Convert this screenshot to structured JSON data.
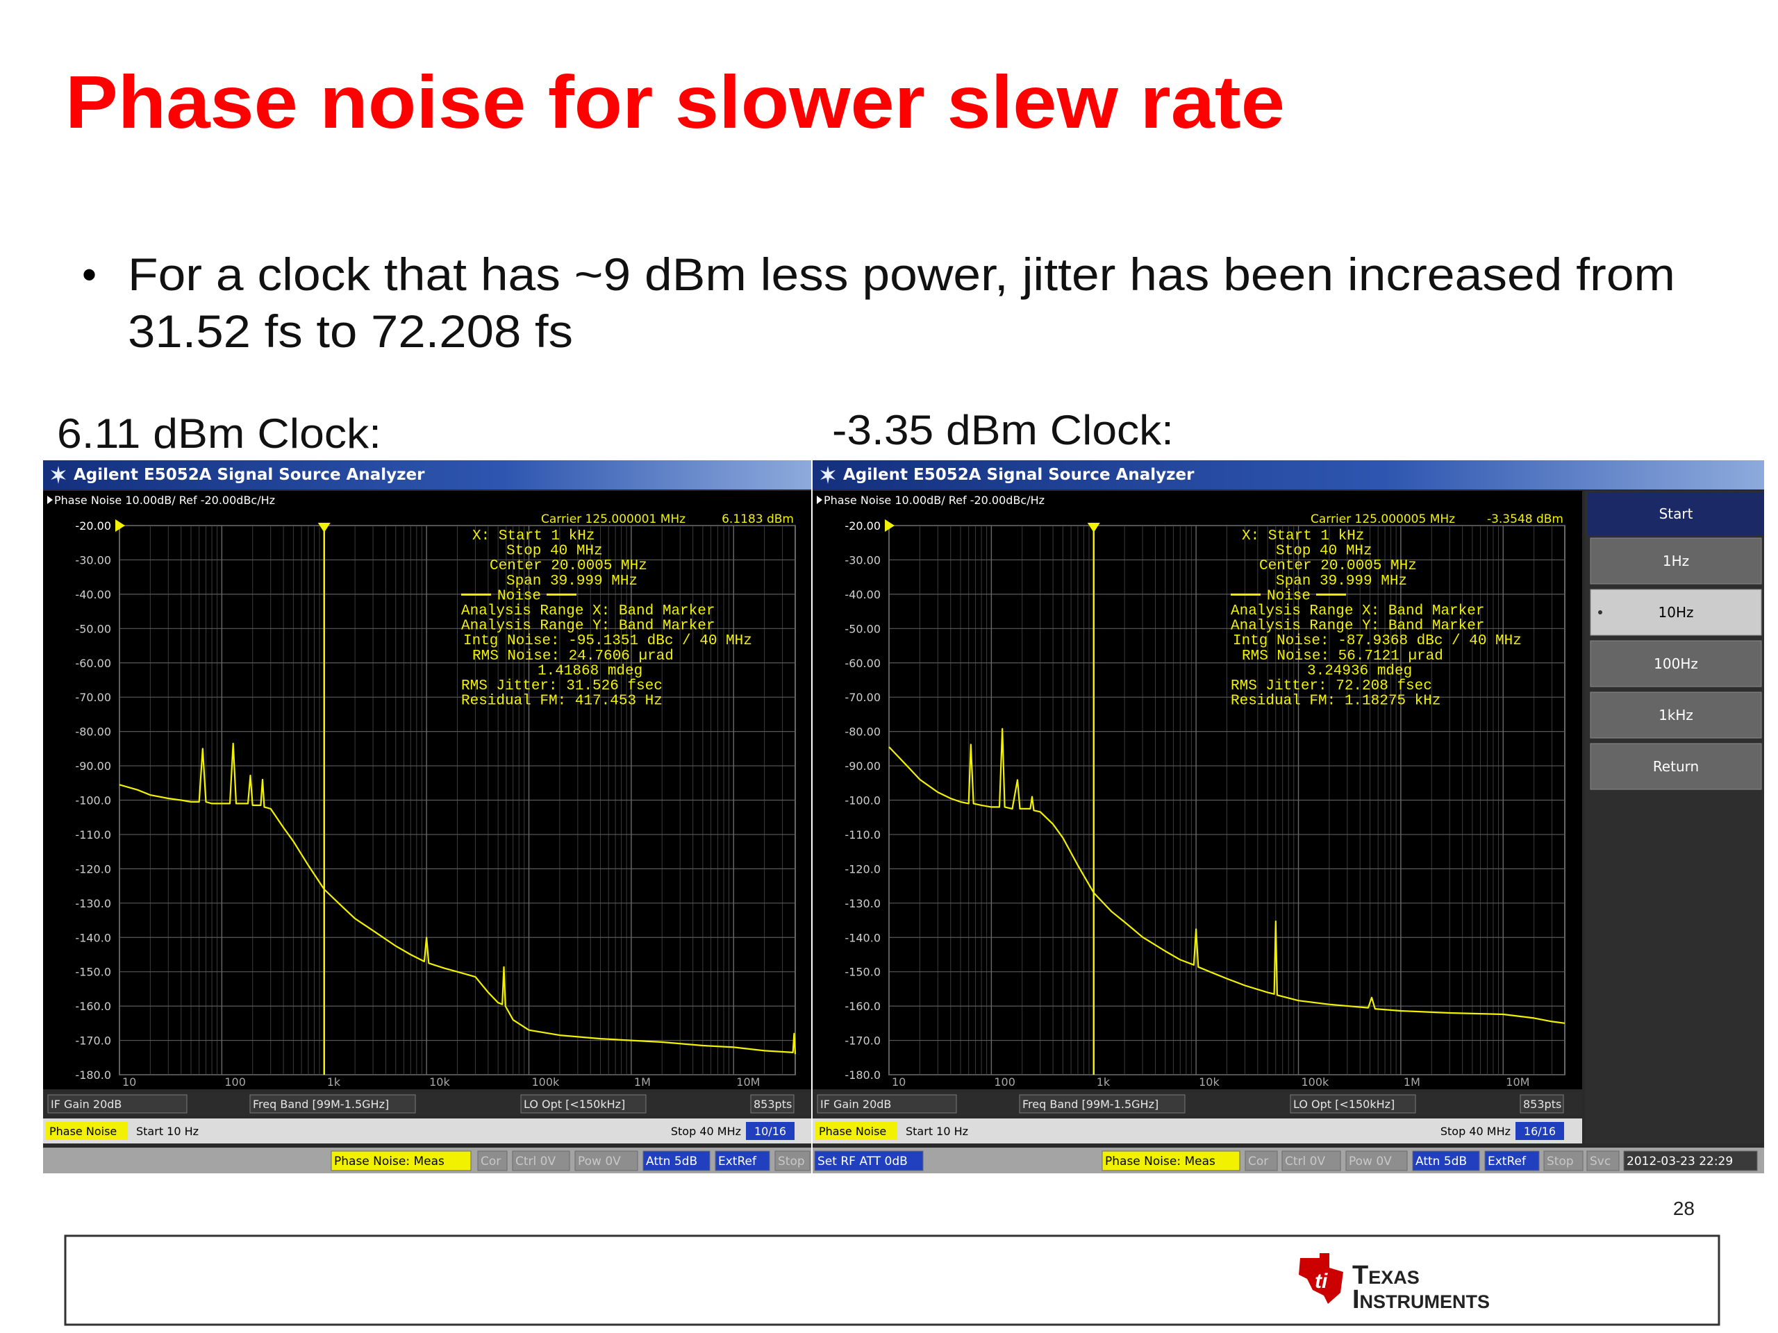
{
  "title": "Phase noise for slower slew rate",
  "bullet_lines": [
    "For a clock that has ~9 dBm less power, jitter has been increased from",
    "31.52 fs to 72.208 fs"
  ],
  "page_number": "28",
  "logo_lines": [
    "Texas",
    "Instruments"
  ],
  "panels": [
    {
      "label": "6.11 dBm Clock:",
      "window_title": "Agilent E5052A Signal Source Analyzer",
      "header": "Phase Noise 10.00dB/ Ref -20.00dBc/Hz",
      "carrier": "Carrier 125.000001 MHz",
      "carrier_power": "6.1183 dBm",
      "marker_lines": [
        "X: Start 1 kHz",
        "Stop 40 MHz",
        "Center 20.0005 MHz",
        "Span 39.999 MHz",
        "Noise",
        "Analysis Range X: Band Marker",
        "Analysis Range Y: Band Marker",
        "Intg Noise: -95.1351 dBc / 40 MHz",
        "RMS Noise: 24.7606 µrad",
        "1.41868 mdeg",
        "RMS Jitter: 31.526 fsec",
        "Residual FM: 417.453 Hz"
      ],
      "chart": {
        "type": "line",
        "log_x": true,
        "color": "#f2f200",
        "xlim": [
          10,
          40000000
        ],
        "ylim": [
          -180,
          -20
        ],
        "band_start": 1000,
        "xticks": [
          10,
          100,
          {
            "value": 1000,
            "label": "1k"
          },
          {
            "value": 10000,
            "label": "10k"
          },
          {
            "value": 100000,
            "label": "100k"
          },
          {
            "value": 1000000,
            "label": "1M"
          },
          {
            "value": 10000000,
            "label": "10M"
          }
        ],
        "yticks": [
          {
            "value": -20,
            "label": "-20.00"
          },
          {
            "value": -30,
            "label": "-30.00"
          },
          {
            "value": -40,
            "label": "-40.00"
          },
          {
            "value": -50,
            "label": "-50.00"
          },
          {
            "value": -60,
            "label": "-60.00"
          },
          {
            "value": -70,
            "label": "-70.00"
          },
          {
            "value": -80,
            "label": "-80.00"
          },
          {
            "value": -90,
            "label": "-90.00"
          },
          {
            "value": -100,
            "label": "-100.0"
          },
          {
            "value": -110,
            "label": "-110.0"
          },
          {
            "value": -120,
            "label": "-120.0"
          },
          {
            "value": -130,
            "label": "-130.0"
          },
          {
            "value": -140,
            "label": "-140.0"
          },
          {
            "value": -150,
            "label": "-150.0"
          },
          {
            "value": -160,
            "label": "-160.0"
          },
          {
            "value": -170,
            "label": "-170.0"
          },
          {
            "value": -180,
            "label": "-180.0"
          }
        ],
        "x": [
          10,
          15,
          20,
          30,
          40,
          50,
          60,
          65,
          70,
          80,
          100,
          120,
          129,
          138,
          150,
          180,
          190,
          200,
          240,
          250,
          260,
          300,
          400,
          500,
          700,
          1000,
          1500,
          2000,
          3000,
          5000,
          7000,
          9500,
          10000,
          10500,
          15000,
          20000,
          30000,
          40000,
          50000,
          55000,
          57000,
          59000,
          70000,
          100000,
          200000,
          500000,
          1000000,
          2000000,
          5000000,
          10000000,
          20000000,
          38000000,
          39000000,
          40000000
        ],
        "values": [
          -95.5,
          -97,
          -98.5,
          -99.5,
          -100,
          -100.5,
          -100.5,
          -85,
          -100.5,
          -101,
          -101,
          -101,
          -83.5,
          -101,
          -101,
          -101,
          -92.8,
          -101.5,
          -101.5,
          -94,
          -102,
          -102.5,
          -108,
          -112,
          -119,
          -126,
          -131,
          -134.5,
          -138,
          -142.5,
          -145,
          -147,
          -140,
          -147.5,
          -149,
          -150,
          -151.5,
          -156,
          -159,
          -159.5,
          -148.6,
          -160,
          -164,
          -167,
          -168.5,
          -169.5,
          -170,
          -170.5,
          -171.5,
          -172,
          -173,
          -173.5,
          -168,
          -174
        ]
      },
      "status": {
        "row1": [
          "IF Gain 20dB",
          "Freq Band [99M-1.5GHz]",
          "LO Opt [<150kHz]",
          "853pts"
        ],
        "row2": [
          "Phase Noise",
          "Start 10 Hz",
          "Stop 40 MHz",
          "10/16"
        ],
        "row3": [
          "Phase Noise: Meas",
          "Cor",
          "Ctrl 0V",
          "Pow 0V",
          "Attn 5dB",
          "ExtRef",
          "Stop"
        ]
      }
    },
    {
      "label": "-3.35 dBm Clock:",
      "window_title": "Agilent E5052A Signal Source Analyzer",
      "header": "Phase Noise 10.00dB/ Ref -20.00dBc/Hz",
      "carrier": "Carrier 125.000005 MHz",
      "carrier_power": "-3.3548 dBm",
      "marker_lines": [
        "X: Start 1 kHz",
        "Stop 40 MHz",
        "Center 20.0005 MHz",
        "Span 39.999 MHz",
        "Noise",
        "Analysis Range X: Band Marker",
        "Analysis Range Y: Band Marker",
        "Intg Noise: -87.9368 dBc / 40 MHz",
        "RMS Noise: 56.7121 µrad",
        "3.24936 mdeg",
        "RMS Jitter: 72.208 fsec",
        "Residual FM: 1.18275 kHz"
      ],
      "chart": {
        "type": "line",
        "log_x": true,
        "color": "#f2f200",
        "xlim": [
          10,
          40000000
        ],
        "ylim": [
          -180,
          -20
        ],
        "band_start": 1000,
        "xticks": [
          10,
          100,
          {
            "value": 1000,
            "label": "1k"
          },
          {
            "value": 10000,
            "label": "10k"
          },
          {
            "value": 100000,
            "label": "100k"
          },
          {
            "value": 1000000,
            "label": "1M"
          },
          {
            "value": 10000000,
            "label": "10M"
          }
        ],
        "yticks": [
          {
            "value": -20,
            "label": "-20.00"
          },
          {
            "value": -30,
            "label": "-30.00"
          },
          {
            "value": -40,
            "label": "-40.00"
          },
          {
            "value": -50,
            "label": "-50.00"
          },
          {
            "value": -60,
            "label": "-60.00"
          },
          {
            "value": -70,
            "label": "-70.00"
          },
          {
            "value": -80,
            "label": "-80.00"
          },
          {
            "value": -90,
            "label": "-90.00"
          },
          {
            "value": -100,
            "label": "-100.0"
          },
          {
            "value": -110,
            "label": "-110.0"
          },
          {
            "value": -120,
            "label": "-120.0"
          },
          {
            "value": -130,
            "label": "-130.0"
          },
          {
            "value": -140,
            "label": "-140.0"
          },
          {
            "value": -150,
            "label": "-150.0"
          },
          {
            "value": -160,
            "label": "-160.0"
          },
          {
            "value": -170,
            "label": "-170.0"
          },
          {
            "value": -180,
            "label": "-180.0"
          }
        ],
        "x": [
          10,
          15,
          20,
          30,
          40,
          50,
          60,
          63,
          67,
          80,
          100,
          120,
          128,
          135,
          160,
          180,
          190,
          240,
          250,
          260,
          300,
          400,
          500,
          700,
          1000,
          1500,
          2000,
          3000,
          5000,
          7000,
          9500,
          10000,
          10500,
          15000,
          20000,
          30000,
          50000,
          58000,
          60000,
          62000,
          100000,
          200000,
          480000,
          520000,
          560000,
          1000000,
          3000000,
          10000000,
          20000000,
          30000000,
          40000000
        ],
        "values": [
          -84.5,
          -90,
          -94,
          -97.7,
          -99.5,
          -100.5,
          -101,
          -83.8,
          -101,
          -101.5,
          -102,
          -102,
          -79.2,
          -102,
          -102.5,
          -94.1,
          -102.5,
          -102.5,
          -99,
          -103,
          -103.4,
          -107,
          -111,
          -119,
          -127,
          -132.5,
          -135.5,
          -139.9,
          -144,
          -146.5,
          -148,
          -137.6,
          -148.6,
          -150.5,
          -152,
          -154,
          -156,
          -156.5,
          -135.3,
          -156.8,
          -158.4,
          -159.5,
          -160.5,
          -157.5,
          -160.8,
          -161.4,
          -162,
          -162.4,
          -163.5,
          -164.5,
          -165
        ]
      },
      "status": {
        "row1": [
          "IF Gain 20dB",
          "Freq Band [99M-1.5GHz]",
          "LO Opt [<150kHz]",
          "853pts"
        ],
        "row2": [
          "Phase Noise",
          "Start 10 Hz",
          "Stop 40 MHz",
          "16/16"
        ],
        "row3": [
          "Set RF ATT 0dB",
          "Phase Noise: Meas",
          "Cor",
          "Ctrl 0V",
          "Pow 0V",
          "Attn 5dB",
          "ExtRef",
          "Stop",
          "Svc",
          "2012-03-23 22:29"
        ]
      },
      "softkeys": {
        "title": "Start",
        "items": [
          "1Hz",
          "10Hz",
          "100Hz",
          "1kHz",
          "Return"
        ],
        "selected": "10Hz"
      }
    }
  ]
}
